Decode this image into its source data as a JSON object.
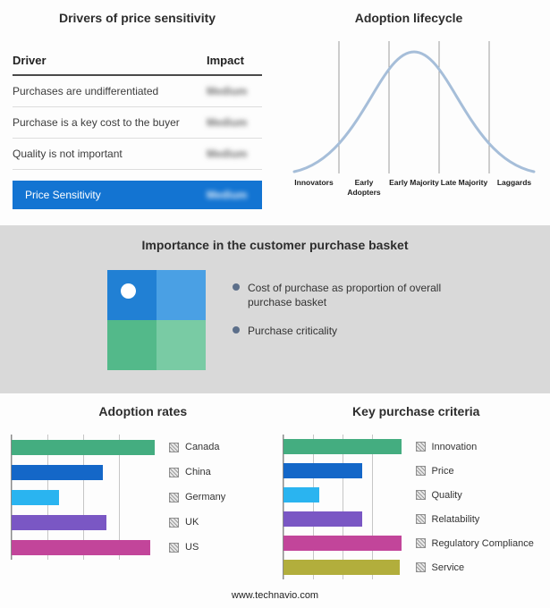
{
  "colors": {
    "highlight_blue": "#1374d2",
    "band_gray": "#d9d9d9",
    "curve": "#a6bed9",
    "bullet": "#5c6f8a"
  },
  "drivers_panel": {
    "title": "Drivers of price sensitivity",
    "table": {
      "headers": [
        "Driver",
        "Impact"
      ],
      "rows": [
        {
          "driver": "Purchases are undifferentiated",
          "impact": "Medium"
        },
        {
          "driver": "Purchase is a key cost to the buyer",
          "impact": "Medium"
        },
        {
          "driver": "Quality is not important",
          "impact": "Medium"
        }
      ],
      "highlight_row": {
        "driver": "Price Sensitivity",
        "impact": "Medium"
      }
    }
  },
  "basket_panel": {
    "title": "Importance in the customer purchase basket",
    "bullets": [
      "Cost of purchase as proportion of overall purchase basket",
      "Purchase criticality"
    ],
    "quadrant_colors": [
      "#2180d4",
      "#4aa0e4",
      "#53b98a",
      "#79cba4"
    ]
  },
  "chart_data": [
    {
      "id": "adoption_lifecycle",
      "type": "line",
      "title": "Adoption lifecycle",
      "shape": "bell curve",
      "categories": [
        "Innovators",
        "Early Adopters",
        "Early Majority",
        "Late Majority",
        "Laggards"
      ],
      "values": [
        0.15,
        0.6,
        1.0,
        0.6,
        0.1
      ],
      "xlabel": "",
      "ylabel": "",
      "grid": "vertical dividers between stages",
      "line_color": "#a6bed9"
    },
    {
      "id": "adoption_rates",
      "type": "bar",
      "orientation": "horizontal",
      "title": "Adoption rates",
      "categories": [
        "Canada",
        "China",
        "Germany",
        "UK",
        "US"
      ],
      "values": [
        100,
        64,
        33,
        66,
        97
      ],
      "value_unit": "relative, no numeric axis shown",
      "bar_colors": [
        "#44ad80",
        "#1467c8",
        "#2ab4f0",
        "#7a57c4",
        "#c2459a"
      ],
      "legend_position": "right",
      "grid": true
    },
    {
      "id": "key_purchase_criteria",
      "type": "bar",
      "orientation": "horizontal",
      "title": "Key purchase criteria",
      "categories": [
        "Innovation",
        "Price",
        "Quality",
        "Relatability",
        "Regulatory Compliance",
        "Service"
      ],
      "values": [
        100,
        67,
        31,
        67,
        100,
        99
      ],
      "value_unit": "relative, no numeric axis shown",
      "bar_colors": [
        "#44ad80",
        "#1467c8",
        "#2ab4f0",
        "#7a57c4",
        "#c2459a",
        "#b2ae3c"
      ],
      "legend_position": "right",
      "grid": true
    }
  ],
  "footer": {
    "text": "www.technavio.com"
  }
}
